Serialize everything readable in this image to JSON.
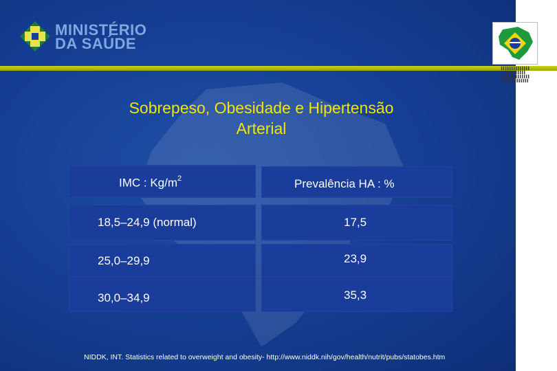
{
  "logo": {
    "line1": "MINISTÉRIO",
    "line2": "DA SAÚDE",
    "brand_color": "#7fa7e0"
  },
  "title": {
    "line1": "Sobrepeso, Obesidade e Hipertensão",
    "line2": "Arterial",
    "color": "#f2e600"
  },
  "table": {
    "headers": {
      "imc_prefix": "IMC : Kg/m",
      "imc_superscript": "2",
      "prevalence": "Prevalência HA : %"
    },
    "rows": [
      {
        "imc": "18,5–24,9 (normal)",
        "prevalence": "17,5"
      },
      {
        "imc": "25,0–29,9",
        "prevalence": "23,9"
      },
      {
        "imc": "30,0–34,9",
        "prevalence": "35,3"
      }
    ]
  },
  "footnote": "NIDDK, INT. Statistics related to overweight and obesity- http://www.niddk.nih/gov/health/nutrit/pubs/statobes.htm",
  "colors": {
    "background": "#143d91",
    "cell": "#1a3d9c",
    "rule": "#c9d41a"
  },
  "icons": {
    "logo": "health-cross-icon",
    "flag": "brazil-flag-map-icon"
  }
}
